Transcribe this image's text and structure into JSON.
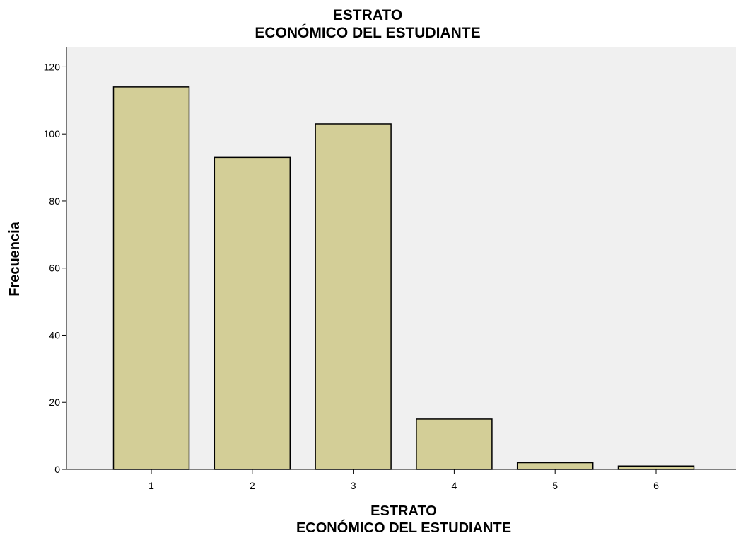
{
  "chart_data": {
    "type": "bar",
    "title_lines": [
      "ESTRATO",
      "ECONÓMICO DEL ESTUDIANTE"
    ],
    "xlabel_lines": [
      "ESTRATO",
      "ECONÓMICO DEL ESTUDIANTE"
    ],
    "ylabel": "Frecuencia",
    "categories": [
      "1",
      "2",
      "3",
      "4",
      "5",
      "6"
    ],
    "values": [
      114,
      93,
      103,
      15,
      2,
      1
    ],
    "ylim": [
      0,
      126
    ],
    "yticks": [
      0,
      20,
      40,
      60,
      80,
      100,
      120
    ],
    "grid": false,
    "colors": {
      "bar_fill": "#d3ce97",
      "bar_stroke": "#000000",
      "plot_background": "#f0f0f0"
    }
  }
}
